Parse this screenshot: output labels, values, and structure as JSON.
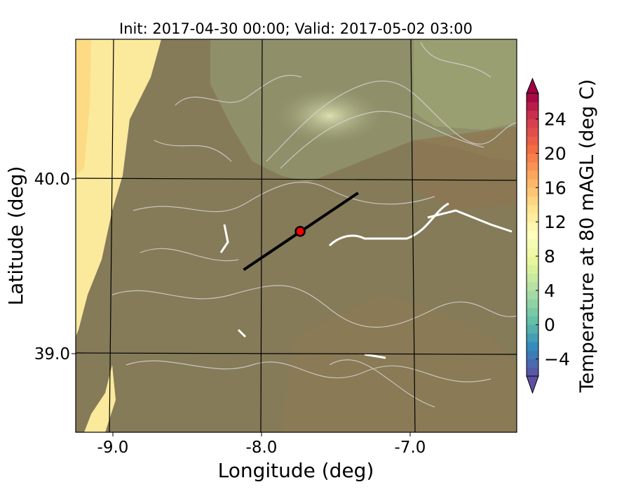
{
  "chart_data": {
    "type": "map",
    "title": "Init: 2017-04-30 00:00; Valid: 2017-05-02 03:00",
    "xlabel": "Longitude (deg)",
    "ylabel": "Latitude (deg)",
    "xlim": [
      -9.25,
      -6.3
    ],
    "ylim": [
      38.55,
      40.8
    ],
    "x_ticks": [
      -9.0,
      -8.0,
      -7.0
    ],
    "x_tick_labels": [
      "-9.0",
      "-8.0",
      "-7.0"
    ],
    "y_ticks": [
      39.0,
      40.0
    ],
    "y_tick_labels": [
      "39.0",
      "40.0"
    ],
    "grid": true,
    "field": "Temperature at 80 mAGL",
    "colorbar": {
      "label": "Temperature at 80 mAGL (deg C)",
      "range": [
        -6,
        27
      ],
      "extend": "both",
      "ticks": [
        -4,
        0,
        4,
        8,
        12,
        16,
        20,
        24
      ],
      "tick_labels": [
        "−4",
        "0",
        "4",
        "8",
        "12",
        "16",
        "20",
        "24"
      ],
      "colormap": "Spectral_r",
      "colors": [
        "#5e4fa2",
        "#3288bd",
        "#66c2a5",
        "#abdda4",
        "#e6f598",
        "#ffffbf",
        "#fee08b",
        "#fdae61",
        "#f46d43",
        "#d53e4f",
        "#9e0142"
      ]
    },
    "cross_section_line": {
      "start": {
        "lon": -8.12,
        "lat": 39.48
      },
      "end": {
        "lon": -7.35,
        "lat": 39.92
      },
      "color": "#000000"
    },
    "point_marker": {
      "lon": -7.74,
      "lat": 39.7,
      "color": "#ff0000"
    }
  }
}
